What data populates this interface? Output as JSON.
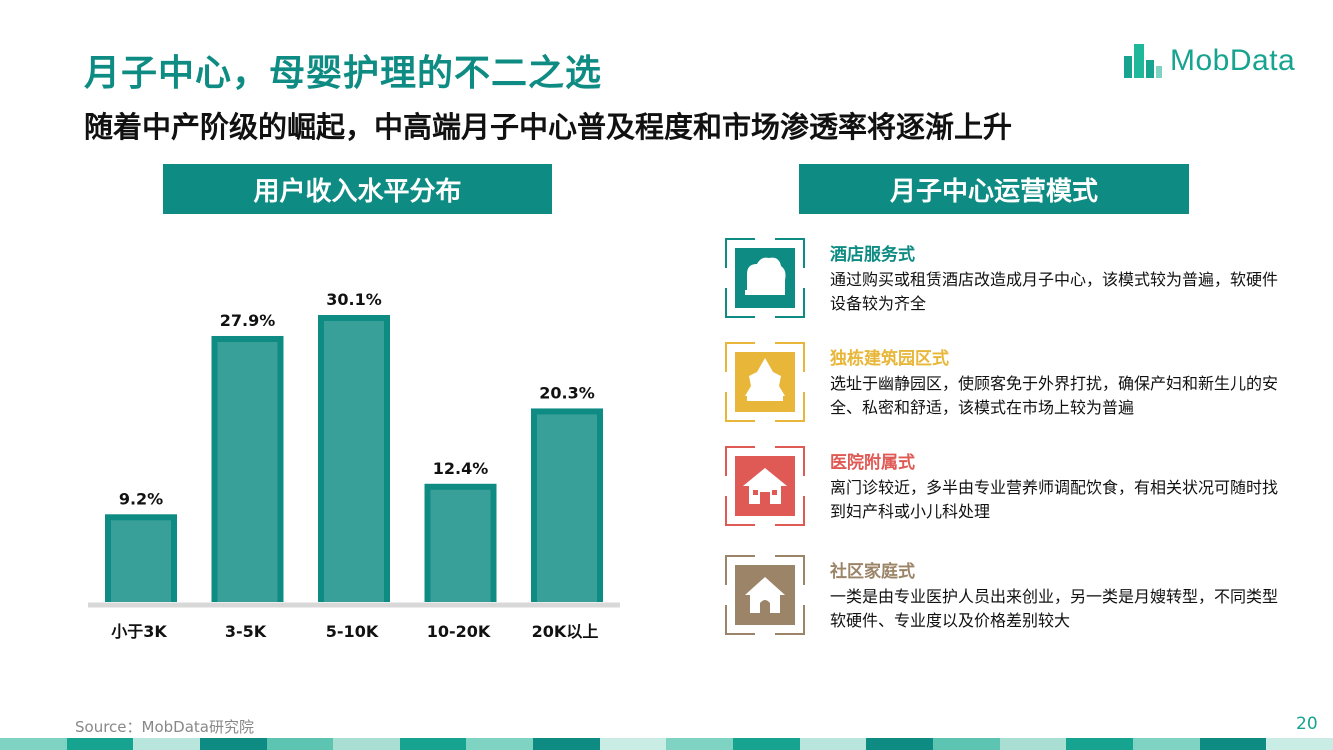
{
  "title": "月子中心，母婴护理的不二之选",
  "subtitle": "随着中产阶级的崛起，中高端月子中心普及程度和市场渗透率将逐渐上升",
  "logo": {
    "text": "MobData",
    "icon": "building-logo-icon"
  },
  "left_panel": {
    "header": "用户收入水平分布"
  },
  "right_panel": {
    "header": "月子中心运营模式"
  },
  "chart_data": {
    "type": "bar",
    "categories": [
      "小于3K",
      "3-5K",
      "5-10K",
      "10-20K",
      "20K以上"
    ],
    "values": [
      9.2,
      27.9,
      30.1,
      12.4,
      20.3
    ],
    "value_labels": [
      "9.2%",
      "27.9%",
      "30.1%",
      "12.4%",
      "20.3%"
    ],
    "ylim": [
      0,
      30.1
    ],
    "bar_color": "#0e8c83",
    "grid": false,
    "legend": "none"
  },
  "modes": [
    {
      "title": "酒店服务式",
      "desc": "通过购买或租赁酒店改造成月子中心，该模式较为普遍，软硬件设备较为齐全",
      "color": "#0e8c83",
      "icon": "hotel-icon"
    },
    {
      "title": "独栋建筑园区式",
      "desc": "选址于幽静园区，使顾客免于外界打扰，确保产妇和新生儿的安全、私密和舒适，该模式在市场上较为普遍",
      "color": "#e8b73a",
      "icon": "park-building-icon"
    },
    {
      "title": "医院附属式",
      "desc": "离门诊较近，多半由专业营养师调配饮食，有相关状况可随时找到妇产科或小儿科处理",
      "color": "#e05a55",
      "icon": "hospital-icon"
    },
    {
      "title": "社区家庭式",
      "desc": "一类是由专业医护人员出来创业，另一类是月嫂转型，不同类型软硬件、专业度以及价格差别较大",
      "color": "#9b8468",
      "icon": "home-icon"
    }
  ],
  "source": "Source：MobData研究院",
  "page_number": "20"
}
